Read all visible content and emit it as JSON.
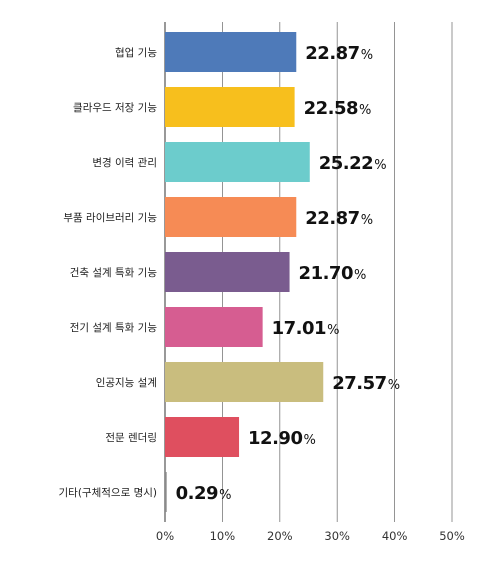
{
  "chart_data": {
    "type": "bar",
    "orientation": "horizontal",
    "categories": [
      "협업 기능",
      "클라우드 저장 기능",
      "변경 이력 관리",
      "부품 라이브러리 기능",
      "건축 설계 특화 기능",
      "전기 설계 특화 기능",
      "인공지능 설계",
      "전문 렌더링",
      "기타(구체적으로 명시)"
    ],
    "values": [
      22.87,
      22.58,
      25.22,
      22.87,
      21.7,
      17.01,
      27.57,
      12.9,
      0.29
    ],
    "value_labels": [
      "22.87",
      "22.58",
      "25.22",
      "22.87",
      "21.70",
      "17.01",
      "27.57",
      "12.90",
      "0.29"
    ],
    "value_suffix": "%",
    "colors": [
      "#4e7ab9",
      "#f7bf1d",
      "#6ccccc",
      "#f68b55",
      "#7a5c8f",
      "#d65d91",
      "#c9bd7e",
      "#df4f5f",
      "#8a8a8a"
    ],
    "xlim": [
      0,
      50
    ],
    "xticks": [
      "0%",
      "10%",
      "20%",
      "30%",
      "40%",
      "50%"
    ],
    "grid": true
  }
}
